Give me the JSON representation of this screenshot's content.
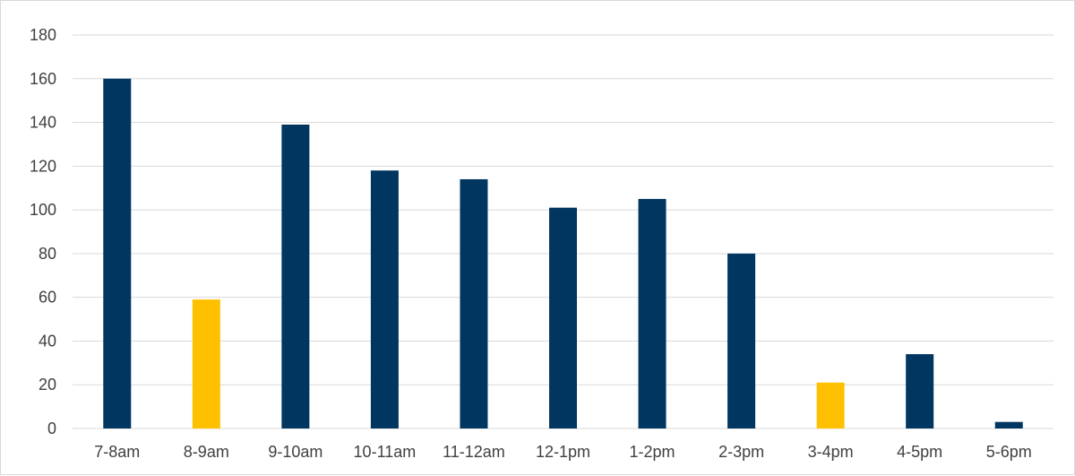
{
  "chart_data": {
    "type": "bar",
    "categories": [
      "7-8am",
      "8-9am",
      "9-10am",
      "10-11am",
      "11-12am",
      "12-1pm",
      "1-2pm",
      "2-3pm",
      "3-4pm",
      "4-5pm",
      "5-6pm"
    ],
    "values": [
      160,
      59,
      139,
      118,
      114,
      101,
      105,
      80,
      21,
      34,
      3
    ],
    "highlighted": [
      false,
      true,
      false,
      false,
      false,
      false,
      false,
      false,
      true,
      false,
      false
    ],
    "ylim": [
      0,
      180
    ],
    "y_ticks": [
      0,
      20,
      40,
      60,
      80,
      100,
      120,
      140,
      160,
      180
    ],
    "grid": true,
    "legend": "none",
    "colors": {
      "bar": "#003660",
      "highlight": "#ffc000",
      "grid": "#d9d9d9"
    }
  }
}
